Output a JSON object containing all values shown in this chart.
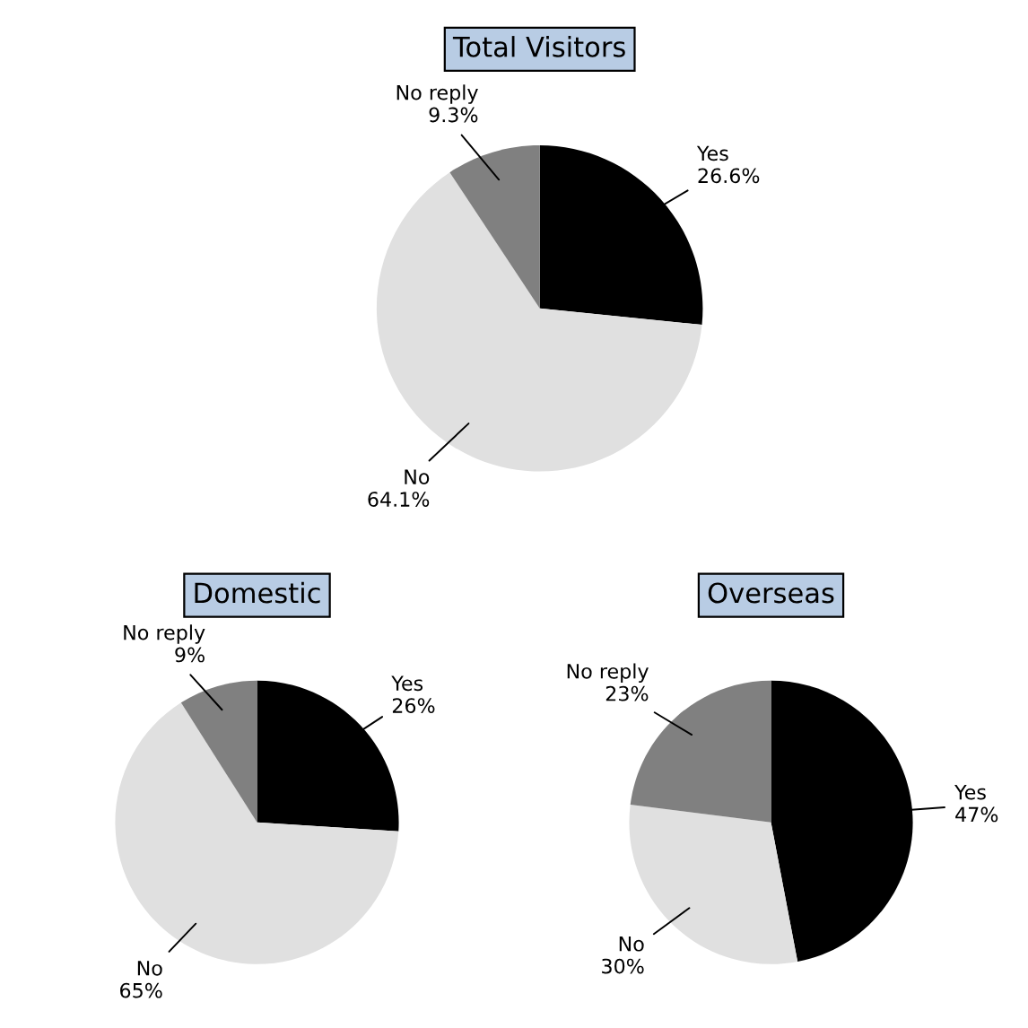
{
  "chart_data": [
    {
      "type": "pie",
      "title": "Total Visitors",
      "categories": [
        "Yes",
        "No",
        "No reply"
      ],
      "data_labels": true,
      "values": [
        26.6,
        64.1,
        9.3
      ],
      "value_labels": [
        "26.6%",
        "64.1%",
        "9.3%"
      ],
      "colors": [
        "#000000",
        "#e0e0e0",
        "#808080"
      ]
    },
    {
      "type": "pie",
      "title": "Domestic",
      "categories": [
        "Yes",
        "No",
        "No reply"
      ],
      "data_labels": true,
      "values": [
        26,
        65,
        9
      ],
      "value_labels": [
        "26%",
        "65%",
        "9%"
      ],
      "colors": [
        "#000000",
        "#e0e0e0",
        "#808080"
      ]
    },
    {
      "type": "pie",
      "title": "Overseas",
      "categories": [
        "Yes",
        "No",
        "No reply"
      ],
      "data_labels": true,
      "values": [
        47,
        30,
        23
      ],
      "value_labels": [
        "47%",
        "30%",
        "23%"
      ],
      "colors": [
        "#000000",
        "#e0e0e0",
        "#808080"
      ]
    }
  ]
}
